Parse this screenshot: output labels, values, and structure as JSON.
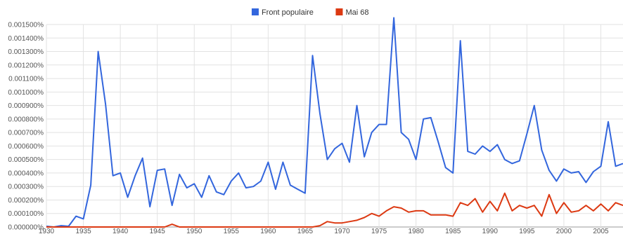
{
  "chart_data": {
    "type": "line",
    "title": "",
    "xlabel": "",
    "ylabel": "",
    "grid": true,
    "legend_position": "top",
    "xlim": [
      1930,
      2008
    ],
    "ylim": [
      0,
      0.0015
    ],
    "x_ticks": [
      {
        "value": 1930,
        "label": "1930"
      },
      {
        "value": 1935,
        "label": "1935"
      },
      {
        "value": 1940,
        "label": "1940"
      },
      {
        "value": 1945,
        "label": "1945"
      },
      {
        "value": 1950,
        "label": "1950"
      },
      {
        "value": 1955,
        "label": "1955"
      },
      {
        "value": 1960,
        "label": "1960"
      },
      {
        "value": 1965,
        "label": "1965"
      },
      {
        "value": 1970,
        "label": "1970"
      },
      {
        "value": 1975,
        "label": "1975"
      },
      {
        "value": 1980,
        "label": "1980"
      },
      {
        "value": 1985,
        "label": "1985"
      },
      {
        "value": 1990,
        "label": "1990"
      },
      {
        "value": 1995,
        "label": "1995"
      },
      {
        "value": 2000,
        "label": "2000"
      },
      {
        "value": 2005,
        "label": "2005"
      }
    ],
    "y_ticks": [
      {
        "value": 0.0,
        "label": "0.000000%"
      },
      {
        "value": 0.0001,
        "label": "0.000100%"
      },
      {
        "value": 0.0002,
        "label": "0.000200%"
      },
      {
        "value": 0.0003,
        "label": "0.000300%"
      },
      {
        "value": 0.0004,
        "label": "0.000400%"
      },
      {
        "value": 0.0005,
        "label": "0.000500%"
      },
      {
        "value": 0.0006,
        "label": "0.000600%"
      },
      {
        "value": 0.0007,
        "label": "0.000700%"
      },
      {
        "value": 0.0008,
        "label": "0.000800%"
      },
      {
        "value": 0.0009,
        "label": "0.000900%"
      },
      {
        "value": 0.001,
        "label": "0.001000%"
      },
      {
        "value": 0.0011,
        "label": "0.001100%"
      },
      {
        "value": 0.0012,
        "label": "0.001200%"
      },
      {
        "value": 0.0013,
        "label": "0.001300%"
      },
      {
        "value": 0.0014,
        "label": "0.001400%"
      },
      {
        "value": 0.0015,
        "label": "0.001500%"
      }
    ],
    "x": [
      1930,
      1931,
      1932,
      1933,
      1934,
      1935,
      1936,
      1937,
      1938,
      1939,
      1940,
      1941,
      1942,
      1943,
      1944,
      1945,
      1946,
      1947,
      1948,
      1949,
      1950,
      1951,
      1952,
      1953,
      1954,
      1955,
      1956,
      1957,
      1958,
      1959,
      1960,
      1961,
      1962,
      1963,
      1964,
      1965,
      1966,
      1967,
      1968,
      1969,
      1970,
      1971,
      1972,
      1973,
      1974,
      1975,
      1976,
      1977,
      1978,
      1979,
      1980,
      1981,
      1982,
      1983,
      1984,
      1985,
      1986,
      1987,
      1988,
      1989,
      1990,
      1991,
      1992,
      1993,
      1994,
      1995,
      1996,
      1997,
      1998,
      1999,
      2000,
      2001,
      2002,
      2003,
      2004,
      2005,
      2006,
      2007,
      2008
    ],
    "series": [
      {
        "name": "Front populaire",
        "color": "#3366dd",
        "values": [
          5e-06,
          0.0,
          1e-05,
          5e-06,
          8e-05,
          6e-05,
          0.00031,
          0.0013,
          0.00091,
          0.00038,
          0.0004,
          0.00022,
          0.00038,
          0.00051,
          0.00015,
          0.00042,
          0.00043,
          0.00016,
          0.00039,
          0.00029,
          0.00032,
          0.00022,
          0.00038,
          0.00026,
          0.00024,
          0.00034,
          0.0004,
          0.00029,
          0.0003,
          0.00034,
          0.00048,
          0.00028,
          0.00048,
          0.00031,
          0.00028,
          0.00025,
          0.00127,
          0.00084,
          0.0005,
          0.00058,
          0.00062,
          0.00048,
          0.0009,
          0.00052,
          0.0007,
          0.00076,
          0.00076,
          0.00155,
          0.0007,
          0.00065,
          0.0005,
          0.0008,
          0.00081,
          0.00063,
          0.00044,
          0.0004,
          0.00138,
          0.00056,
          0.00054,
          0.0006,
          0.00056,
          0.00061,
          0.0005,
          0.00047,
          0.00049,
          0.00069,
          0.0009,
          0.00057,
          0.00042,
          0.00034,
          0.00043,
          0.0004,
          0.00041,
          0.00033,
          0.00041,
          0.00045,
          0.00078,
          0.00045,
          0.00047
        ]
      },
      {
        "name": "Mai 68",
        "color": "#dc3912",
        "values": [
          0.0,
          0.0,
          0.0,
          0.0,
          0.0,
          0.0,
          0.0,
          0.0,
          0.0,
          0.0,
          0.0,
          0.0,
          0.0,
          0.0,
          0.0,
          0.0,
          0.0,
          2e-05,
          0.0,
          0.0,
          0.0,
          0.0,
          0.0,
          0.0,
          0.0,
          0.0,
          0.0,
          0.0,
          0.0,
          0.0,
          0.0,
          0.0,
          0.0,
          0.0,
          0.0,
          0.0,
          0.0,
          1e-05,
          4e-05,
          3e-05,
          3e-05,
          4e-05,
          5e-05,
          7e-05,
          0.0001,
          8e-05,
          0.00012,
          0.00015,
          0.00014,
          0.00011,
          0.00012,
          0.00012,
          9e-05,
          9e-05,
          9e-05,
          8e-05,
          0.00018,
          0.00016,
          0.00021,
          0.00011,
          0.00019,
          0.00012,
          0.00025,
          0.00012,
          0.00016,
          0.00014,
          0.00016,
          8e-05,
          0.00024,
          0.0001,
          0.00018,
          0.00011,
          0.00012,
          0.00016,
          0.00012,
          0.00017,
          0.00012,
          0.00018,
          0.00016
        ]
      }
    ]
  }
}
